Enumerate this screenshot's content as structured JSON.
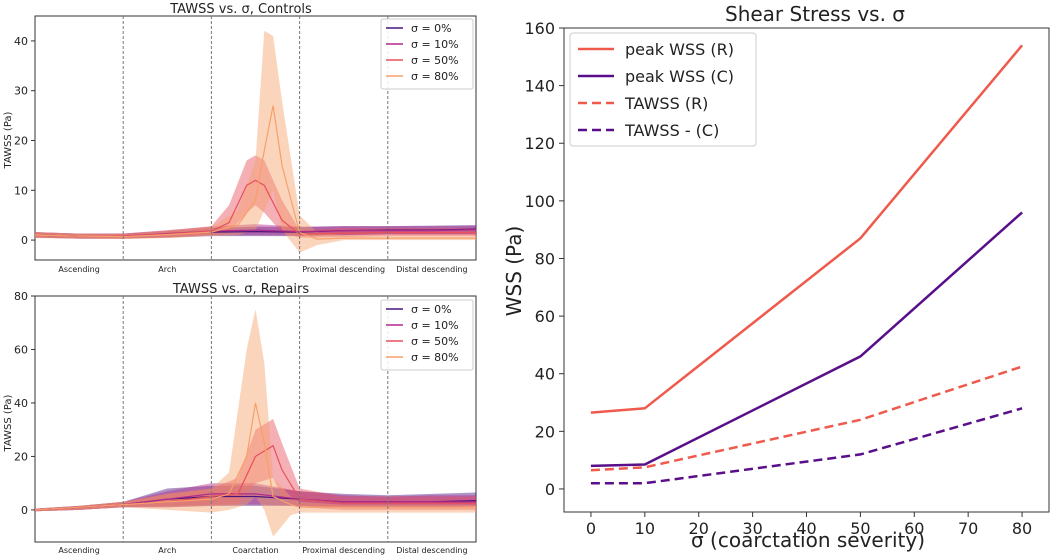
{
  "chart_data": [
    {
      "type": "line",
      "title": "TAWSS vs. σ, Controls",
      "ylabel": "TAWSS (Pa)",
      "ylim": [
        -4,
        45
      ],
      "yticks": [
        0,
        10,
        20,
        30,
        40
      ],
      "segments": [
        "Ascending",
        "Arch",
        "Coarctation",
        "Proximal descending",
        "Distal descending"
      ],
      "legend": [
        "σ = 0%",
        "σ = 10%",
        "σ = 50%",
        "σ = 80%"
      ],
      "colors": [
        "#4a1580",
        "#b02a8a",
        "#e8505b",
        "#f7a06a"
      ],
      "series": [
        {
          "name": "σ = 0%",
          "x": [
            0,
            0.5,
            1,
            1.5,
            2,
            2.5,
            3,
            3.5,
            4,
            4.5,
            5
          ],
          "values": [
            1.0,
            0.8,
            0.8,
            1.2,
            1.6,
            1.7,
            1.6,
            1.9,
            2.0,
            2.0,
            2.2
          ],
          "lower": [
            0.5,
            0.3,
            0.3,
            0.5,
            0.8,
            0.8,
            0.8,
            1.0,
            1.2,
            1.2,
            1.2
          ],
          "upper": [
            1.6,
            1.3,
            1.3,
            1.8,
            2.4,
            2.7,
            2.6,
            2.8,
            2.8,
            2.9,
            3.0
          ]
        },
        {
          "name": "σ = 10%",
          "x": [
            0,
            0.5,
            1,
            1.5,
            2,
            2.5,
            3,
            3.5,
            4,
            4.5,
            5
          ],
          "values": [
            1.0,
            0.8,
            0.8,
            1.3,
            1.8,
            2.0,
            1.7,
            1.9,
            1.9,
            1.9,
            2.1
          ],
          "lower": [
            0.5,
            0.3,
            0.3,
            0.6,
            1.0,
            1.0,
            0.9,
            1.0,
            1.1,
            1.1,
            1.1
          ],
          "upper": [
            1.6,
            1.3,
            1.3,
            2.0,
            2.7,
            3.2,
            2.7,
            2.8,
            2.8,
            2.8,
            2.9
          ]
        },
        {
          "name": "σ = 50%",
          "x": [
            0,
            0.5,
            1,
            1.5,
            2,
            2.2,
            2.4,
            2.5,
            2.6,
            2.8,
            3,
            3.5,
            4,
            4.5,
            5
          ],
          "values": [
            1.0,
            0.8,
            0.8,
            1.2,
            1.8,
            3.5,
            11.0,
            12.0,
            11.0,
            4.0,
            1.2,
            1.4,
            1.5,
            1.5,
            1.5
          ],
          "lower": [
            0.5,
            0.3,
            0.3,
            0.5,
            1.0,
            1.5,
            5.5,
            7.0,
            5.5,
            1.5,
            0.5,
            0.6,
            0.8,
            0.8,
            0.8
          ],
          "upper": [
            1.6,
            1.3,
            1.3,
            1.9,
            2.8,
            7.0,
            16.0,
            17.0,
            16.0,
            8.0,
            2.0,
            2.4,
            2.4,
            2.4,
            2.4
          ]
        },
        {
          "name": "σ = 80%",
          "x": [
            0,
            0.5,
            1,
            1.5,
            2,
            2.3,
            2.5,
            2.6,
            2.7,
            2.8,
            3,
            3.2,
            3.5,
            4,
            4.5,
            5
          ],
          "values": [
            1.0,
            0.8,
            0.7,
            1.1,
            1.6,
            3.0,
            8.0,
            18.0,
            27.0,
            15.0,
            1.5,
            0.2,
            0.4,
            0.4,
            0.4,
            0.4
          ],
          "lower": [
            0.4,
            0.3,
            0.2,
            0.4,
            0.8,
            1.0,
            2.0,
            6.0,
            10.0,
            2.0,
            -2.5,
            -1.0,
            0.0,
            0.0,
            0.0,
            0.0
          ],
          "upper": [
            1.6,
            1.3,
            1.2,
            1.9,
            2.6,
            6.0,
            16.0,
            42.0,
            41.0,
            28.0,
            5.0,
            1.5,
            1.0,
            1.0,
            1.0,
            1.0
          ]
        }
      ]
    },
    {
      "type": "line",
      "title": "TAWSS vs. σ, Repairs",
      "ylabel": "TAWSS (Pa)",
      "ylim": [
        -12,
        80
      ],
      "yticks": [
        0,
        20,
        40,
        60,
        80
      ],
      "segments": [
        "Ascending",
        "Arch",
        "Coarctation",
        "Proximal descending",
        "Distal descending"
      ],
      "legend": [
        "σ = 0%",
        "σ = 10%",
        "σ = 50%",
        "σ = 80%"
      ],
      "colors": [
        "#4a1580",
        "#b02a8a",
        "#e8505b",
        "#f7a06a"
      ],
      "series": [
        {
          "name": "σ = 0%",
          "x": [
            0,
            0.5,
            1,
            1.5,
            2,
            2.5,
            3,
            3.5,
            4,
            4.5,
            5
          ],
          "values": [
            0,
            1,
            2,
            4,
            5,
            5,
            4,
            3,
            3,
            3,
            3.5
          ],
          "lower": [
            -0.5,
            0,
            1,
            1,
            1.5,
            1.5,
            1.5,
            1,
            1,
            1,
            1.5
          ],
          "upper": [
            0.5,
            1.5,
            3,
            8,
            9,
            9,
            7,
            6,
            5.5,
            6,
            6.5
          ]
        },
        {
          "name": "σ = 10%",
          "x": [
            0,
            0.5,
            1,
            1.5,
            2,
            2.5,
            3,
            3.5,
            4,
            4.5,
            5
          ],
          "values": [
            0,
            1,
            2,
            4,
            6,
            6,
            4,
            3,
            3,
            3,
            3
          ],
          "lower": [
            -0.5,
            0,
            1,
            1.5,
            2,
            2,
            1.5,
            1,
            1,
            1,
            1
          ],
          "upper": [
            0.5,
            1.5,
            3,
            7,
            10,
            10,
            7,
            5.5,
            5,
            5.5,
            5.5
          ]
        },
        {
          "name": "σ = 50%",
          "x": [
            0,
            0.5,
            1,
            1.5,
            2,
            2.3,
            2.5,
            2.7,
            2.8,
            3,
            3.5,
            4,
            4.5,
            5
          ],
          "values": [
            0,
            1,
            2,
            3,
            5,
            6,
            20,
            24,
            15,
            4,
            2.5,
            2.5,
            2.5,
            2.5
          ],
          "lower": [
            -0.5,
            0,
            1,
            1,
            1.5,
            2,
            10,
            12,
            5,
            1,
            0,
            0,
            0,
            0
          ],
          "upper": [
            0.5,
            1.5,
            3,
            6,
            8,
            12,
            30,
            34,
            25,
            8,
            5,
            5,
            5,
            5
          ]
        },
        {
          "name": "σ = 80%",
          "x": [
            0,
            0.5,
            1,
            1.5,
            2,
            2.2,
            2.4,
            2.5,
            2.6,
            2.7,
            2.9,
            3,
            3.5,
            4,
            4.5,
            5
          ],
          "values": [
            0,
            1,
            2,
            3,
            4,
            6,
            20,
            40,
            25,
            5,
            2,
            1,
            1,
            1,
            1,
            1
          ],
          "lower": [
            -0.5,
            0,
            1,
            0,
            -1,
            0,
            2,
            5,
            0,
            -10,
            -2,
            -1,
            -1,
            -1,
            -1,
            -1
          ],
          "upper": [
            0.5,
            1.5,
            3,
            6,
            8,
            14,
            60,
            75,
            55,
            12,
            5,
            3,
            2,
            2,
            2,
            2
          ]
        }
      ]
    },
    {
      "type": "line",
      "title": "Shear Stress vs. σ",
      "xlabel": "σ (coarctation severity)",
      "ylabel": "WSS (Pa)",
      "xlim": [
        -5,
        85
      ],
      "ylim": [
        -8,
        160
      ],
      "xticks": [
        0,
        10,
        20,
        30,
        40,
        50,
        60,
        70,
        80
      ],
      "yticks": [
        0,
        20,
        40,
        60,
        80,
        100,
        120,
        140,
        160
      ],
      "x": [
        0,
        10,
        50,
        80
      ],
      "series": [
        {
          "name": "peak WSS (R)",
          "values": [
            26.5,
            28,
            87,
            154
          ],
          "color": "#ef5a4c",
          "dash": false
        },
        {
          "name": "peak WSS (C)",
          "values": [
            8,
            8.5,
            46,
            96
          ],
          "color": "#5a0f8a",
          "dash": false
        },
        {
          "name": "TAWSS (R)",
          "values": [
            6.5,
            7.5,
            24,
            42.5
          ],
          "color": "#ef5a4c",
          "dash": true
        },
        {
          "name": "TAWSS - (C)",
          "values": [
            2,
            2,
            12,
            28
          ],
          "color": "#5a0f8a",
          "dash": true
        }
      ]
    }
  ]
}
